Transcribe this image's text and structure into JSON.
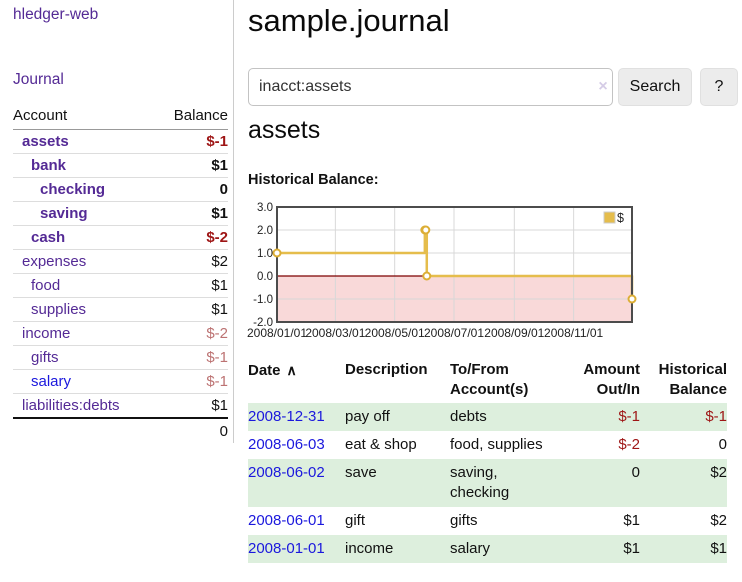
{
  "sidebar": {
    "brand": "hledger-web",
    "nav": {
      "journal": "Journal"
    },
    "accounts_table": {
      "account_header": "Account",
      "balance_header": "Balance",
      "rows": [
        {
          "name": "assets",
          "depth": 1,
          "emphasis": true,
          "name_color": "purple",
          "balance": "$-1",
          "balance_color": "negative"
        },
        {
          "name": "bank",
          "depth": 2,
          "emphasis": true,
          "name_color": "purple",
          "balance": "$1",
          "balance_color": "default"
        },
        {
          "name": "checking",
          "depth": 3,
          "emphasis": true,
          "name_color": "purple",
          "balance": "0",
          "balance_color": "default"
        },
        {
          "name": "saving",
          "depth": 3,
          "emphasis": true,
          "name_color": "purple",
          "balance": "$1",
          "balance_color": "default"
        },
        {
          "name": "cash",
          "depth": 2,
          "emphasis": true,
          "name_color": "purple",
          "balance": "$-2",
          "balance_color": "negative"
        },
        {
          "name": "expenses",
          "depth": 1,
          "emphasis": false,
          "name_color": "purple",
          "balance": "$2",
          "balance_color": "default"
        },
        {
          "name": "food",
          "depth": 2,
          "emphasis": false,
          "name_color": "purple",
          "balance": "$1",
          "balance_color": "default"
        },
        {
          "name": "supplies",
          "depth": 2,
          "emphasis": false,
          "name_color": "purple",
          "balance": "$1",
          "balance_color": "default"
        },
        {
          "name": "income",
          "depth": 1,
          "emphasis": false,
          "name_color": "purple",
          "balance": "$-2",
          "balance_color": "negative-soft"
        },
        {
          "name": "gifts",
          "depth": 2,
          "emphasis": false,
          "name_color": "purple",
          "balance": "$-1",
          "balance_color": "negative-soft"
        },
        {
          "name": "salary",
          "depth": 2,
          "emphasis": false,
          "name_color": "blue",
          "balance": "$-1",
          "balance_color": "negative-soft"
        },
        {
          "name": "liabilities:debts",
          "depth": 1,
          "emphasis": false,
          "name_color": "purple",
          "balance": "$1",
          "balance_color": "default"
        }
      ],
      "total": "0"
    }
  },
  "main": {
    "title": "sample.journal",
    "search": {
      "value": "inacct:assets",
      "clear_icon": "×",
      "search_button": "Search",
      "help_button": "?"
    },
    "register": {
      "heading": "assets",
      "chart_title": "Historical Balance:",
      "table": {
        "headers": {
          "date": "Date",
          "sort_icon": "∧",
          "description": "Description",
          "accounts_line1": "To/From",
          "accounts_line2": "Account(s)",
          "amount_line1": "Amount",
          "amount_line2": "Out/In",
          "balance_line1": "Historical",
          "balance_line2": "Balance"
        },
        "rows": [
          {
            "date": "2008-12-31",
            "description": "pay off",
            "accounts": "debts",
            "amount": "$-1",
            "amount_negative": true,
            "balance": "$-1",
            "balance_negative": true
          },
          {
            "date": "2008-06-03",
            "description": "eat & shop",
            "accounts": "food, supplies",
            "amount": "$-2",
            "amount_negative": true,
            "balance": "0",
            "balance_negative": false
          },
          {
            "date": "2008-06-02",
            "description": "save",
            "accounts": "saving, checking",
            "amount": "0",
            "amount_negative": false,
            "balance": "$2",
            "balance_negative": false
          },
          {
            "date": "2008-06-01",
            "description": "gift",
            "accounts": "gifts",
            "amount": "$1",
            "amount_negative": false,
            "balance": "$2",
            "balance_negative": false
          },
          {
            "date": "2008-01-01",
            "description": "income",
            "accounts": "salary",
            "amount": "$1",
            "amount_negative": false,
            "balance": "$1",
            "balance_negative": false
          }
        ]
      }
    }
  },
  "chart_data": {
    "type": "line",
    "step": true,
    "title": "Historical Balance:",
    "series": [
      {
        "name": "$",
        "points": [
          {
            "date": "2008-01-01",
            "value": 1
          },
          {
            "date": "2008-06-01",
            "value": 2
          },
          {
            "date": "2008-06-02",
            "value": 2
          },
          {
            "date": "2008-06-03",
            "value": 0
          },
          {
            "date": "2008-12-31",
            "value": -1
          }
        ]
      }
    ],
    "x_range": [
      "2008-01-01",
      "2008-12-31"
    ],
    "y_range": [
      -2,
      3
    ],
    "y_ticks": [
      3,
      2,
      1,
      0,
      -1,
      -2
    ],
    "x_ticks": [
      {
        "date": "2008-01-01",
        "label": "2008/01/01"
      },
      {
        "date": "2008-03-01",
        "label": "2008/03/01"
      },
      {
        "date": "2008-05-01",
        "label": "2008/05/01"
      },
      {
        "date": "2008-07-01",
        "label": "2008/07/01"
      },
      {
        "date": "2008-09-01",
        "label": "2008/09/01"
      },
      {
        "date": "2008-11-01",
        "label": "2008/11/01"
      }
    ],
    "legend": {
      "label": "$",
      "position": "top-right"
    },
    "grid": true,
    "negative_region_shaded": true
  },
  "colors": {
    "purple_link": "#542a95",
    "blue_link": "#1b18dd",
    "negative_strong": "#9e1515",
    "negative_soft": "#bc7272",
    "table_stripe_green": "#ddefdd",
    "chart": {
      "line": "#e5bd4c",
      "marker_stroke": "#dcae35",
      "marker_fill": "#ffffff",
      "negative_region": "#f9d9d9",
      "zero_line": "#7d0000",
      "grid": "#d8d8d8",
      "border": "#4c4c4c",
      "legend_box_border": "#cccccc",
      "tick_text": "#222222"
    }
  }
}
